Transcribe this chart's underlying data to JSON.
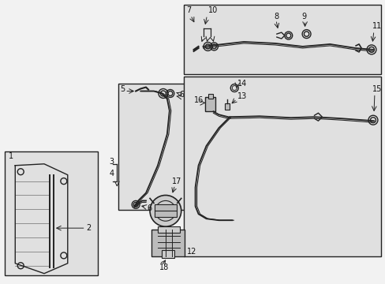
{
  "bg_color": "#f2f2f2",
  "line_color": "#222222",
  "box_bg": "#e0e0e0",
  "label_color": "#111111",
  "fig_width": 4.89,
  "fig_height": 3.6
}
